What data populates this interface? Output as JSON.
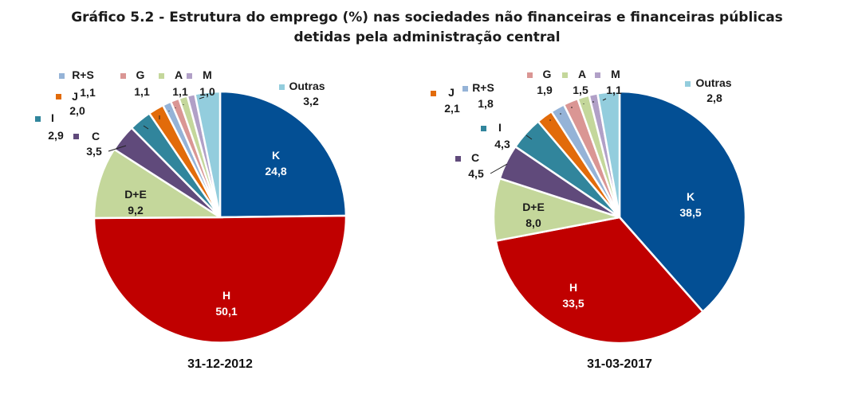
{
  "title_line1": "Gráfico 5.2 - Estrutura do emprego (%) nas sociedades não financeiras e financeiras públicas",
  "title_line2": "detidas pela administração central",
  "colors": {
    "K": "#034f94",
    "H": "#c00000",
    "D+E": "#c4d79b",
    "C": "#604a7b",
    "I": "#31859c",
    "J": "#e26b0a",
    "R+S": "#95b3d7",
    "G": "#da9694",
    "A": "#c4d79b",
    "M": "#b1a0c7",
    "Outras": "#93cddd"
  },
  "chart_data": [
    {
      "type": "pie",
      "caption": "31-12-2012",
      "categories": [
        "K",
        "H",
        "D+E",
        "C",
        "I",
        "J",
        "R+S",
        "G",
        "A",
        "M",
        "Outras"
      ],
      "values": [
        24.8,
        50.1,
        9.2,
        3.5,
        2.9,
        2.0,
        1.1,
        1.1,
        1.1,
        1.0,
        3.2
      ],
      "value_labels": [
        "24,8",
        "50,1",
        "9,2",
        "3,5",
        "2,9",
        "2,0",
        "1,1",
        "1,1",
        "1,1",
        "1,0",
        "3,2"
      ],
      "start": "12 o'clock",
      "direction": "clockwise"
    },
    {
      "type": "pie",
      "caption": "31-03-2017",
      "categories": [
        "K",
        "H",
        "D+E",
        "C",
        "I",
        "J",
        "R+S",
        "G",
        "A",
        "M",
        "Outras"
      ],
      "values": [
        38.5,
        33.5,
        8.0,
        4.5,
        4.3,
        2.1,
        1.8,
        1.9,
        1.5,
        1.1,
        2.8
      ],
      "value_labels": [
        "38,5",
        "33,5",
        "8,0",
        "4,5",
        "4,3",
        "2,1",
        "1,8",
        "1,9",
        "1,5",
        "1,1",
        "2,8"
      ],
      "start": "12 o'clock",
      "direction": "clockwise"
    }
  ]
}
